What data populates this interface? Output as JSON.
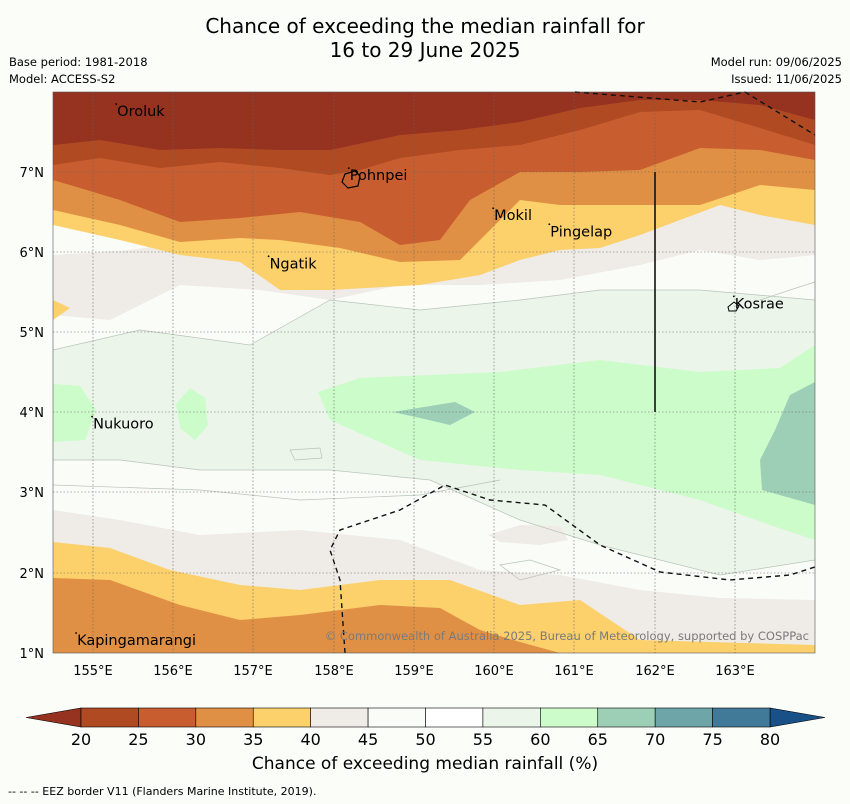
{
  "title": {
    "line1": "Chance of exceeding the median rainfall for",
    "line2": "16 to 29 June 2025"
  },
  "meta_left": {
    "base_period": "Base period: 1981-2018",
    "model": "Model: ACCESS-S2"
  },
  "meta_right": {
    "model_run": "Model run: 09/06/2025",
    "issued": "Issued: 11/06/2025"
  },
  "map": {
    "lon_range": [
      154.5,
      164
    ],
    "lat_range": [
      1,
      8
    ],
    "x_ticks": [
      "155°E",
      "156°E",
      "157°E",
      "158°E",
      "159°E",
      "160°E",
      "161°E",
      "162°E",
      "163°E"
    ],
    "y_ticks": [
      "1°N",
      "2°N",
      "3°N",
      "4°N",
      "5°N",
      "6°N",
      "7°N"
    ],
    "places": [
      {
        "name": "Oroluk",
        "lon": 155.3,
        "lat": 7.7
      },
      {
        "name": "Pohnpei",
        "lon": 158.2,
        "lat": 6.9
      },
      {
        "name": "Mokil",
        "lon": 160.0,
        "lat": 6.4
      },
      {
        "name": "Pingelap",
        "lon": 160.7,
        "lat": 6.2
      },
      {
        "name": "Ngatik",
        "lon": 157.2,
        "lat": 5.8
      },
      {
        "name": "Kosrae",
        "lon": 163.0,
        "lat": 5.3
      },
      {
        "name": "Nukuoro",
        "lon": 155.0,
        "lat": 3.8
      },
      {
        "name": "Kapingamarangi",
        "lon": 154.8,
        "lat": 1.1
      }
    ],
    "copyright": "© Commonwealth of Australia 2025, Bureau of Meteorology, supported by COSPPac"
  },
  "colorbar": {
    "ticks": [
      "20",
      "25",
      "30",
      "35",
      "40",
      "45",
      "50",
      "55",
      "60",
      "65",
      "70",
      "75",
      "80"
    ],
    "colors": [
      "#b04a22",
      "#c85e30",
      "#e09044",
      "#fcd06b",
      "#efebe6",
      "#fafcf8",
      "#ffffff",
      "#ebf5ea",
      "#ccfcca",
      "#9dcfb6",
      "#6da5a8",
      "#417a99"
    ],
    "under_color": "#953220",
    "over_color": "#195088",
    "label": "Chance of exceeding median rainfall (%)"
  },
  "footer": "--  --  -- EEZ border V11 (Flanders Marine Institute, 2019)."
}
